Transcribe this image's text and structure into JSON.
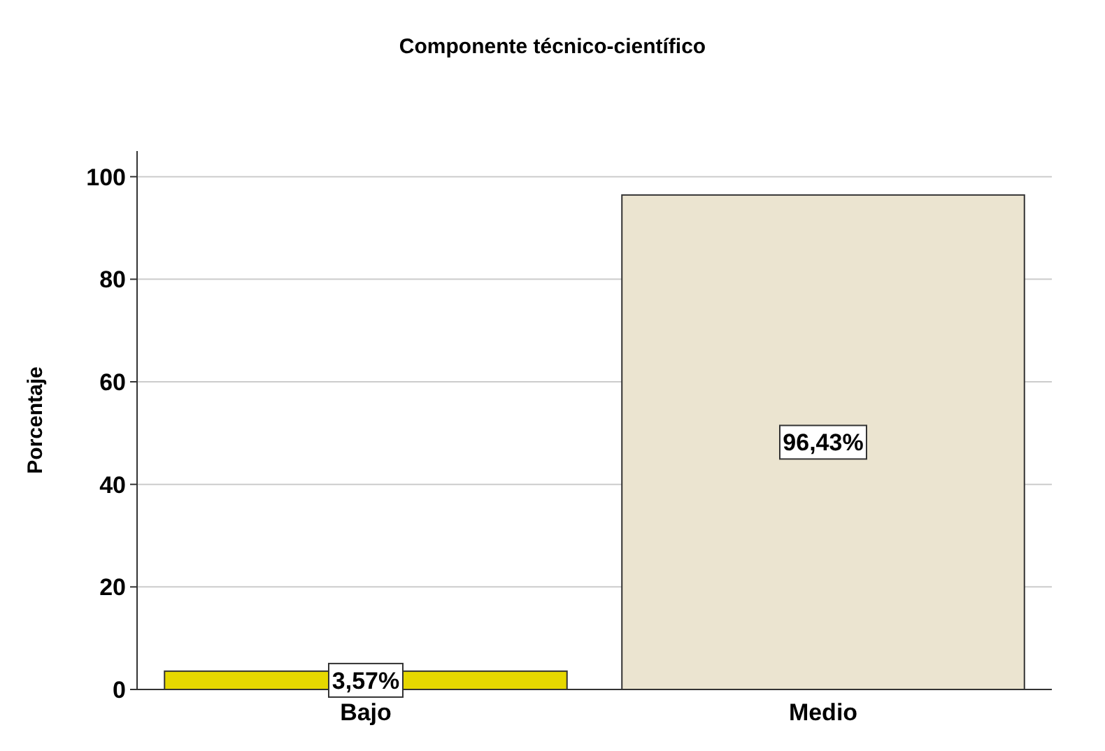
{
  "chart_data": {
    "type": "bar",
    "title": "Componente técnico-científico",
    "ylabel": "Porcentaje",
    "categories": [
      "Bajo",
      "Medio"
    ],
    "values": [
      3.57,
      96.43
    ],
    "colors": [
      "#e6d800",
      "#ebe4d0"
    ],
    "value_labels": [
      "3,57%",
      "96,43%"
    ],
    "ylim": [
      0,
      105
    ],
    "yticks": [
      0,
      20,
      40,
      60,
      80,
      100
    ],
    "grid": "y"
  }
}
